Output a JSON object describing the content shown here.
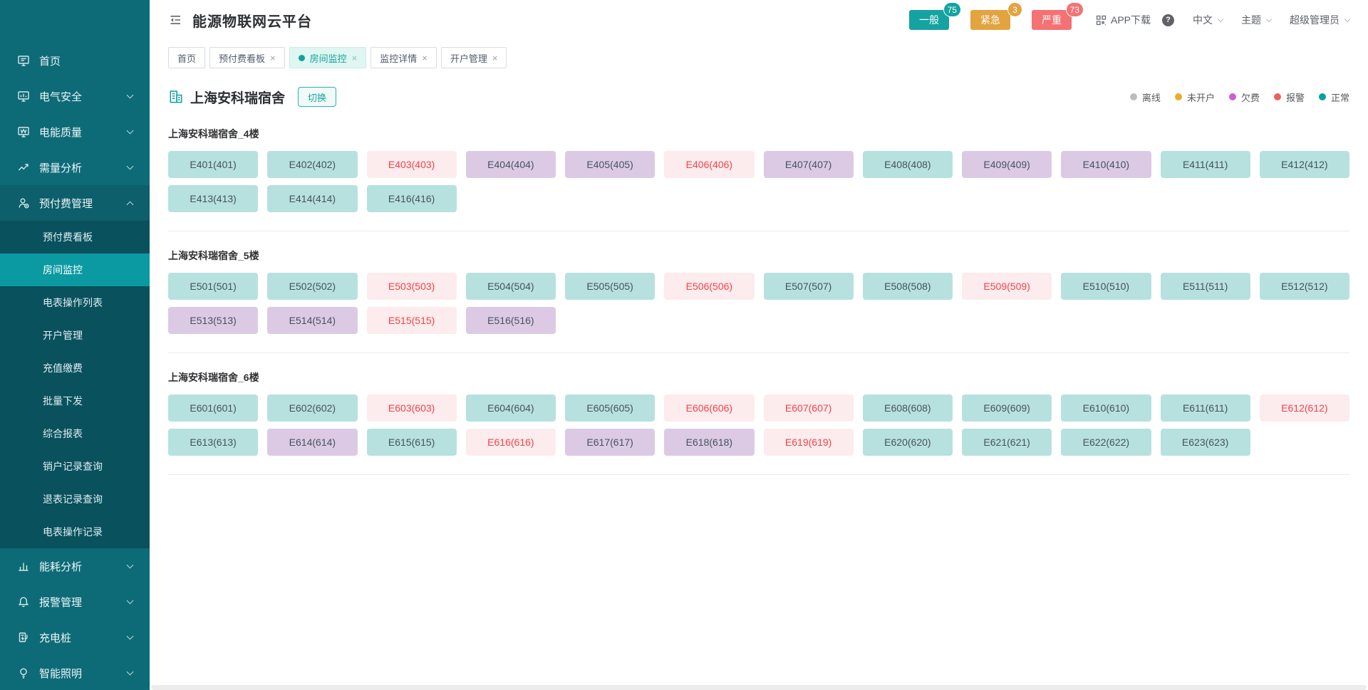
{
  "header": {
    "title": "能源物联网云平台",
    "badges": [
      {
        "id": "general",
        "label": "一般",
        "count": "75",
        "color": "#14a3a0"
      },
      {
        "id": "urgent",
        "label": "紧急",
        "count": "3",
        "color": "#e3a33f"
      },
      {
        "id": "critical",
        "label": "严重",
        "count": "73",
        "color": "#f47174"
      }
    ],
    "app_download_label": "APP下载",
    "language_label": "中文",
    "theme_label": "主题",
    "user_label": "超级管理员"
  },
  "tabs": [
    {
      "label": "首页",
      "active": false,
      "closable": false
    },
    {
      "label": "预付费看板",
      "active": false,
      "closable": true
    },
    {
      "label": "房间监控",
      "active": true,
      "closable": true
    },
    {
      "label": "监控详情",
      "active": false,
      "closable": true
    },
    {
      "label": "开户管理",
      "active": false,
      "closable": true
    }
  ],
  "sidebar": {
    "items": [
      {
        "id": "home",
        "label": "首页",
        "icon": "dashboard-icon",
        "chevron": false
      },
      {
        "id": "electric-safety",
        "label": "电气安全",
        "icon": "electric-safety-icon",
        "chevron": true
      },
      {
        "id": "power-quality",
        "label": "电能质量",
        "icon": "power-quality-icon",
        "chevron": true
      },
      {
        "id": "demand-analysis",
        "label": "需量分析",
        "icon": "demand-analysis-icon",
        "chevron": true
      },
      {
        "id": "prepaid-management",
        "label": "预付费管理",
        "icon": "prepaid-user-icon",
        "chevron": true,
        "expanded": true,
        "children": [
          {
            "label": "预付费看板"
          },
          {
            "label": "房间监控",
            "active": true
          },
          {
            "label": "电表操作列表"
          },
          {
            "label": "开户管理"
          },
          {
            "label": "充值缴费"
          },
          {
            "label": "批量下发"
          },
          {
            "label": "综合报表"
          },
          {
            "label": "销户记录查询"
          },
          {
            "label": "退表记录查询"
          },
          {
            "label": "电表操作记录"
          }
        ]
      },
      {
        "id": "energy-analysis",
        "label": "能耗分析",
        "icon": "energy-analysis-icon",
        "chevron": true
      },
      {
        "id": "alarm-management",
        "label": "报警管理",
        "icon": "alarm-bell-icon",
        "chevron": true
      },
      {
        "id": "charging-pile",
        "label": "充电桩",
        "icon": "charging-pile-icon",
        "chevron": true
      },
      {
        "id": "smart-lighting",
        "label": "智能照明",
        "icon": "smart-lighting-icon",
        "chevron": true
      }
    ]
  },
  "page": {
    "building_name": "上海安科瑞宿舍",
    "switch_label": "切换",
    "legend": [
      {
        "label": "离线",
        "color": "#bdbdbd"
      },
      {
        "label": "未开户",
        "color": "#eeac2a"
      },
      {
        "label": "欠费",
        "color": "#cf5ed1"
      },
      {
        "label": "报警",
        "color": "#ed5f5f"
      },
      {
        "label": "正常",
        "color": "#00a39c"
      }
    ],
    "status_colors": {
      "normal_bg": "#b7e1de",
      "arrears_bg": "#dccae5",
      "alarm_bg": "#fdeced",
      "alarm_text": "#f5414b"
    },
    "sections": [
      {
        "title": "上海安科瑞宿舍_4楼",
        "rooms": [
          {
            "label": "E401(401)",
            "status": "normal"
          },
          {
            "label": "E402(402)",
            "status": "normal"
          },
          {
            "label": "E403(403)",
            "status": "alarm"
          },
          {
            "label": "E404(404)",
            "status": "arrears"
          },
          {
            "label": "E405(405)",
            "status": "arrears"
          },
          {
            "label": "E406(406)",
            "status": "alarm"
          },
          {
            "label": "E407(407)",
            "status": "arrears"
          },
          {
            "label": "E408(408)",
            "status": "normal"
          },
          {
            "label": "E409(409)",
            "status": "arrears"
          },
          {
            "label": "E410(410)",
            "status": "arrears"
          },
          {
            "label": "E411(411)",
            "status": "normal"
          },
          {
            "label": "E412(412)",
            "status": "normal"
          },
          {
            "label": "E413(413)",
            "status": "normal"
          },
          {
            "label": "E414(414)",
            "status": "normal"
          },
          {
            "label": "E416(416)",
            "status": "normal"
          }
        ]
      },
      {
        "title": "上海安科瑞宿舍_5楼",
        "rooms": [
          {
            "label": "E501(501)",
            "status": "normal"
          },
          {
            "label": "E502(502)",
            "status": "normal"
          },
          {
            "label": "E503(503)",
            "status": "alarm"
          },
          {
            "label": "E504(504)",
            "status": "normal"
          },
          {
            "label": "E505(505)",
            "status": "normal"
          },
          {
            "label": "E506(506)",
            "status": "alarm"
          },
          {
            "label": "E507(507)",
            "status": "normal"
          },
          {
            "label": "E508(508)",
            "status": "normal"
          },
          {
            "label": "E509(509)",
            "status": "alarm"
          },
          {
            "label": "E510(510)",
            "status": "normal"
          },
          {
            "label": "E511(511)",
            "status": "normal"
          },
          {
            "label": "E512(512)",
            "status": "normal"
          },
          {
            "label": "E513(513)",
            "status": "arrears"
          },
          {
            "label": "E514(514)",
            "status": "arrears"
          },
          {
            "label": "E515(515)",
            "status": "alarm"
          },
          {
            "label": "E516(516)",
            "status": "arrears"
          }
        ]
      },
      {
        "title": "上海安科瑞宿舍_6楼",
        "rooms": [
          {
            "label": "E601(601)",
            "status": "normal"
          },
          {
            "label": "E602(602)",
            "status": "normal"
          },
          {
            "label": "E603(603)",
            "status": "alarm"
          },
          {
            "label": "E604(604)",
            "status": "normal"
          },
          {
            "label": "E605(605)",
            "status": "normal"
          },
          {
            "label": "E606(606)",
            "status": "alarm"
          },
          {
            "label": "E607(607)",
            "status": "alarm"
          },
          {
            "label": "E608(608)",
            "status": "normal"
          },
          {
            "label": "E609(609)",
            "status": "normal"
          },
          {
            "label": "E610(610)",
            "status": "normal"
          },
          {
            "label": "E611(611)",
            "status": "normal"
          },
          {
            "label": "E612(612)",
            "status": "alarm"
          },
          {
            "label": "E613(613)",
            "status": "normal"
          },
          {
            "label": "E614(614)",
            "status": "arrears"
          },
          {
            "label": "E615(615)",
            "status": "normal"
          },
          {
            "label": "E616(616)",
            "status": "alarm"
          },
          {
            "label": "E617(617)",
            "status": "arrears"
          },
          {
            "label": "E618(618)",
            "status": "arrears"
          },
          {
            "label": "E619(619)",
            "status": "alarm"
          },
          {
            "label": "E620(620)",
            "status": "normal"
          },
          {
            "label": "E621(621)",
            "status": "normal"
          },
          {
            "label": "E622(622)",
            "status": "normal"
          },
          {
            "label": "E623(623)",
            "status": "normal"
          }
        ]
      }
    ]
  }
}
